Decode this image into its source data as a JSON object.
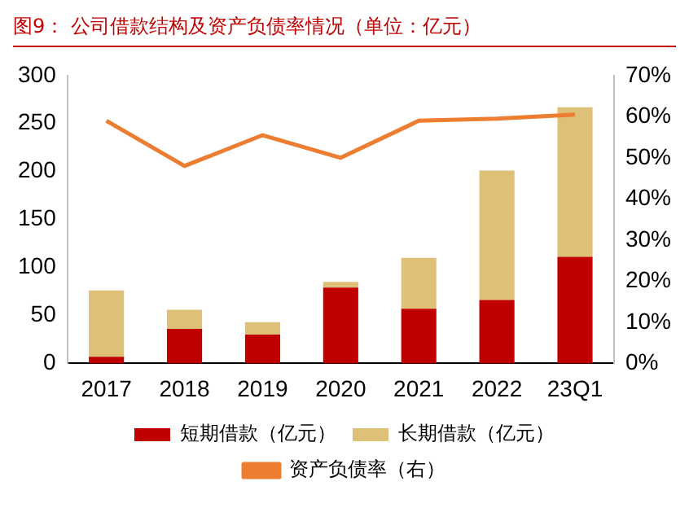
{
  "chart_data": {
    "type": "bar",
    "title": "图9：  公司借款结构及资产负债率情况（单位：亿元）",
    "categories": [
      "2017",
      "2018",
      "2019",
      "2020",
      "2021",
      "2022",
      "23Q1"
    ],
    "stacked": true,
    "series": [
      {
        "name": "短期借款（亿元）",
        "color": "#c00000",
        "values": [
          7,
          36,
          30,
          79,
          57,
          66,
          111
        ]
      },
      {
        "name": "长期借款（亿元）",
        "color": "#dfc077",
        "values": [
          69,
          20,
          13,
          6,
          53,
          135,
          156
        ]
      },
      {
        "name": "资产负债率（右）",
        "type": "line",
        "axis": "y2",
        "color": "#ed7d31",
        "marker": "none",
        "values": [
          59,
          48,
          55.5,
          50,
          59,
          59.5,
          60.5
        ]
      }
    ],
    "ylim": [
      0,
      300
    ],
    "yticks": [
      0,
      50,
      100,
      150,
      200,
      250,
      300
    ],
    "y2lim": [
      0,
      70
    ],
    "y2ticks": [
      {
        "value": 0,
        "label": "0%"
      },
      {
        "value": 10,
        "label": "10%"
      },
      {
        "value": 20,
        "label": "20%"
      },
      {
        "value": 30,
        "label": "30%"
      },
      {
        "value": 40,
        "label": "40%"
      },
      {
        "value": 50,
        "label": "50%"
      },
      {
        "value": 60,
        "label": "60%"
      },
      {
        "value": 70,
        "label": "70%"
      }
    ],
    "grid": false,
    "legend": "bottom"
  }
}
